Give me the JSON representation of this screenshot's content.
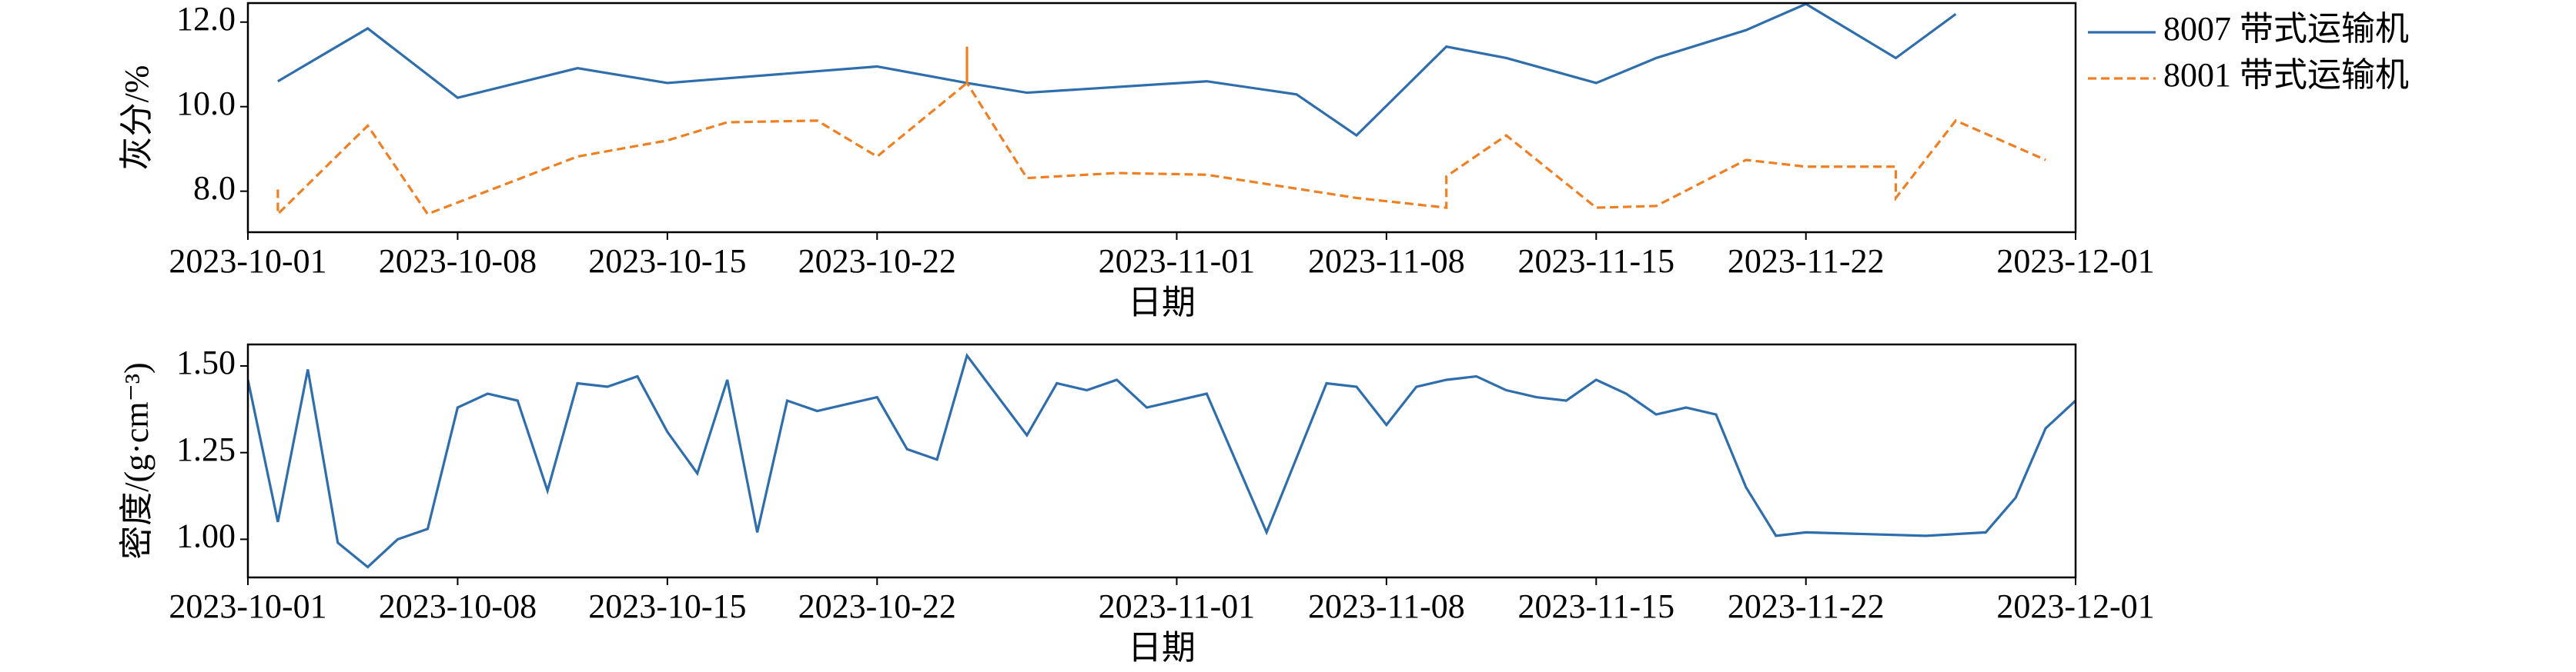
{
  "chart_data": [
    {
      "type": "line",
      "xlabel": "日期",
      "ylabel": "灰分/%",
      "xlim": [
        "2023-10-01",
        "2023-12-01"
      ],
      "xticks": [
        "2023-10-01",
        "2023-10-08",
        "2023-10-15",
        "2023-10-22",
        "2023-11-01",
        "2023-11-08",
        "2023-11-15",
        "2023-11-22",
        "2023-12-01"
      ],
      "ylim": [
        7.03,
        12.45
      ],
      "yticks": [
        {
          "value": 8,
          "label": "8.0"
        },
        {
          "value": 10,
          "label": "10.0"
        },
        {
          "value": 12,
          "label": "12.0"
        }
      ],
      "legend": "outside-upper-right",
      "series": [
        {
          "name": "8007 带式运输机",
          "color": "#2f6ead",
          "dash": "solid",
          "x": [
            "2023-10-02",
            "2023-10-05",
            "2023-10-08",
            "2023-10-12",
            "2023-10-15",
            "2023-10-22",
            "2023-10-25",
            "2023-10-27",
            "2023-11-02",
            "2023-11-05",
            "2023-11-07",
            "2023-11-10",
            "2023-11-12",
            "2023-11-15",
            "2023-11-17",
            "2023-11-20",
            "2023-11-22",
            "2023-11-25",
            "2023-11-27"
          ],
          "values": [
            10.6,
            11.85,
            10.21,
            10.91,
            10.56,
            10.95,
            10.56,
            10.33,
            10.6,
            10.29,
            9.32,
            11.42,
            11.15,
            10.56,
            11.15,
            11.81,
            12.43,
            11.15,
            12.19
          ]
        },
        {
          "name": "8001 带式运输机",
          "color": "#f07f22",
          "dash": "dashed",
          "x": [
            "2023-10-02",
            "2023-10-02",
            "2023-10-05",
            "2023-10-07",
            "2023-10-12",
            "2023-10-15",
            "2023-10-17",
            "2023-10-20",
            "2023-10-22",
            "2023-10-25",
            "2023-10-25",
            "2023-10-25",
            "2023-10-27",
            "2023-10-30",
            "2023-11-02",
            "2023-11-07",
            "2023-11-10",
            "2023-11-10",
            "2023-11-12",
            "2023-11-15",
            "2023-11-17",
            "2023-11-20",
            "2023-11-22",
            "2023-11-25",
            "2023-11-25",
            "2023-11-27",
            "2023-11-30"
          ],
          "values": [
            8.04,
            7.46,
            9.55,
            7.46,
            8.82,
            9.2,
            9.63,
            9.67,
            8.82,
            10.56,
            11.42,
            10.56,
            8.31,
            8.43,
            8.39,
            7.84,
            7.61,
            8.35,
            9.32,
            7.61,
            7.65,
            8.74,
            8.58,
            8.58,
            7.84,
            9.67,
            8.74
          ]
        }
      ]
    },
    {
      "type": "line",
      "xlabel": "日期",
      "ylabel": "密度/(g·cm⁻³)",
      "xlim": [
        "2023-10-01",
        "2023-12-01"
      ],
      "xticks": [
        "2023-10-01",
        "2023-10-08",
        "2023-10-15",
        "2023-10-22",
        "2023-11-01",
        "2023-11-08",
        "2023-11-15",
        "2023-11-22",
        "2023-12-01"
      ],
      "ylim": [
        0.89,
        1.562
      ],
      "yticks": [
        {
          "value": 1,
          "label": "1.00"
        },
        {
          "value": 1.25,
          "label": "1.25"
        },
        {
          "value": 1.5,
          "label": "1.50"
        }
      ],
      "series": [
        {
          "color": "#2f6ead",
          "dash": "solid",
          "x": [
            "2023-10-01",
            "2023-10-02",
            "2023-10-03",
            "2023-10-04",
            "2023-10-05",
            "2023-10-06",
            "2023-10-07",
            "2023-10-08",
            "2023-10-09",
            "2023-10-10",
            "2023-10-11",
            "2023-10-12",
            "2023-10-13",
            "2023-10-14",
            "2023-10-15",
            "2023-10-16",
            "2023-10-17",
            "2023-10-18",
            "2023-10-19",
            "2023-10-20",
            "2023-10-21",
            "2023-10-22",
            "2023-10-23",
            "2023-10-24",
            "2023-10-25",
            "2023-10-27",
            "2023-10-28",
            "2023-10-29",
            "2023-10-30",
            "2023-10-31",
            "2023-11-01",
            "2023-11-02",
            "2023-11-04",
            "2023-11-06",
            "2023-11-07",
            "2023-11-08",
            "2023-11-09",
            "2023-11-10",
            "2023-11-11",
            "2023-11-12",
            "2023-11-13",
            "2023-11-14",
            "2023-11-15",
            "2023-11-16",
            "2023-11-17",
            "2023-11-18",
            "2023-11-19",
            "2023-11-20",
            "2023-11-21",
            "2023-11-22",
            "2023-11-26",
            "2023-11-28",
            "2023-11-29",
            "2023-11-30",
            "2023-12-01"
          ],
          "values": [
            1.46,
            1.05,
            1.49,
            0.99,
            0.92,
            1.0,
            1.03,
            1.38,
            1.42,
            1.4,
            1.14,
            1.45,
            1.44,
            1.47,
            1.31,
            1.19,
            1.46,
            1.02,
            1.4,
            1.37,
            1.39,
            1.41,
            1.26,
            1.23,
            1.53,
            1.3,
            1.45,
            1.43,
            1.46,
            1.38,
            1.4,
            1.42,
            1.02,
            1.45,
            1.44,
            1.33,
            1.44,
            1.46,
            1.47,
            1.43,
            1.41,
            1.4,
            1.46,
            1.42,
            1.36,
            1.38,
            1.36,
            1.15,
            1.01,
            1.02,
            1.01,
            1.02,
            1.12,
            1.32,
            1.4
          ]
        }
      ]
    }
  ]
}
